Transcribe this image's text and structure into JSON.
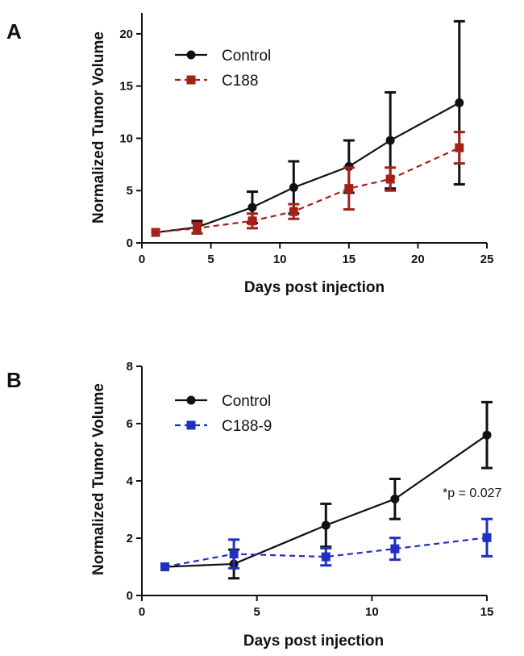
{
  "chart_data": [
    {
      "type": "line",
      "panel_label": "A",
      "xlabel": "Days post injection",
      "ylabel": "Normalized Tumor Volume",
      "xlim": [
        0,
        25
      ],
      "ylim": [
        0,
        22
      ],
      "xticks": [
        0,
        5,
        10,
        15,
        20,
        25
      ],
      "yticks": [
        0,
        5,
        10,
        15,
        20
      ],
      "grid": false,
      "legend_position": "top-left",
      "series": [
        {
          "name": "Control",
          "color": "#111111",
          "marker": "circle",
          "dash": false,
          "x": [
            1,
            4,
            8,
            11,
            15,
            18,
            23
          ],
          "y": [
            1.0,
            1.5,
            3.4,
            5.3,
            7.3,
            9.8,
            13.4
          ],
          "err": [
            0.0,
            0.6,
            1.5,
            2.5,
            2.5,
            4.6,
            7.8
          ]
        },
        {
          "name": "C188",
          "color": "#a52019",
          "marker": "square",
          "dash": true,
          "x": [
            1,
            4,
            8,
            11,
            15,
            18,
            23
          ],
          "y": [
            1.0,
            1.4,
            2.1,
            3.0,
            5.2,
            6.1,
            9.1
          ],
          "err": [
            0.0,
            0.5,
            0.7,
            0.7,
            2.0,
            1.1,
            1.5
          ]
        }
      ]
    },
    {
      "type": "line",
      "panel_label": "B",
      "xlabel": "Days post injection",
      "ylabel": "Normalized Tumor Volume",
      "xlim": [
        0,
        15
      ],
      "ylim": [
        0,
        8
      ],
      "xticks": [
        0,
        5,
        10,
        15
      ],
      "yticks": [
        0,
        2,
        4,
        6,
        8
      ],
      "grid": false,
      "legend_position": "top-left",
      "annotation": "*p = 0.027",
      "series": [
        {
          "name": "Control",
          "color": "#111111",
          "marker": "circle",
          "dash": false,
          "x": [
            1,
            4,
            8,
            11,
            15
          ],
          "y": [
            1.0,
            1.1,
            2.45,
            3.37,
            5.6
          ],
          "err": [
            0.0,
            0.5,
            0.75,
            0.7,
            1.15
          ]
        },
        {
          "name": "C188-9",
          "color": "#1f2fbf",
          "marker": "square",
          "dash": true,
          "x": [
            1,
            4,
            8,
            11,
            15
          ],
          "y": [
            1.0,
            1.45,
            1.35,
            1.63,
            2.02
          ],
          "err": [
            0.0,
            0.5,
            0.3,
            0.38,
            0.65
          ]
        }
      ]
    }
  ]
}
